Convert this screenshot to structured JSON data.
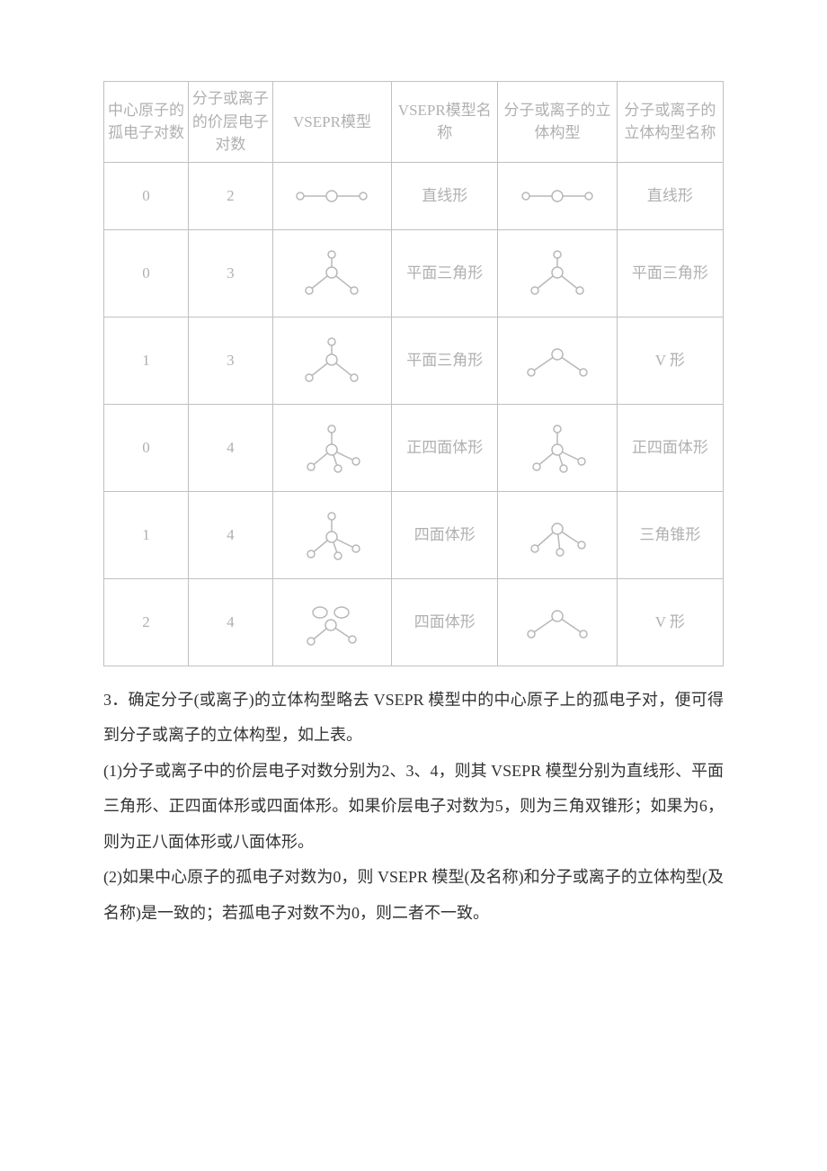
{
  "table": {
    "columns": [
      "中心原子的孤电子对数",
      "分子或离子的价层电子对数",
      "VSEPR模型",
      "VSEPR模型名称",
      "分子或离子的立体构型",
      "分子或离子的立体构型名称"
    ],
    "rows": [
      {
        "lonePairs": "0",
        "valencePairs": "2",
        "vseprName": "直线形",
        "geomName": "直线形",
        "vseprIcon": "linear",
        "geomIcon": "linear",
        "height": "short"
      },
      {
        "lonePairs": "0",
        "valencePairs": "3",
        "vseprName": "平面三角形",
        "geomName": "平面三角形",
        "vseprIcon": "trigonal",
        "geomIcon": "trigonal",
        "height": "tall"
      },
      {
        "lonePairs": "1",
        "valencePairs": "3",
        "vseprName": "平面三角形",
        "geomName": "V 形",
        "vseprIcon": "trigonal",
        "geomIcon": "bent",
        "height": "tall"
      },
      {
        "lonePairs": "0",
        "valencePairs": "4",
        "vseprName": "正四面体形",
        "geomName": "正四面体形",
        "vseprIcon": "tetra",
        "geomIcon": "tetra",
        "height": "tall"
      },
      {
        "lonePairs": "1",
        "valencePairs": "4",
        "vseprName": "四面体形",
        "geomName": "三角锥形",
        "vseprIcon": "tetra",
        "geomIcon": "pyramid",
        "height": "tall"
      },
      {
        "lonePairs": "2",
        "valencePairs": "4",
        "vseprName": "四面体形",
        "geomName": "V 形",
        "vseprIcon": "tetra-lp",
        "geomIcon": "bent",
        "height": "tall"
      }
    ],
    "style": {
      "border_color": "#c0c0c0",
      "text_color": "#b0b0b0",
      "font_size": 17,
      "icon_stroke": "#b8b8b8",
      "icon_fill": "#ffffff"
    }
  },
  "paragraphs": {
    "p3": "3．确定分子(或离子)的立体构型略去 VSEPR 模型中的中心原子上的孤电子对，便可得到分子或离子的立体构型，如上表。",
    "p1": "(1)分子或离子中的价层电子对数分别为2、3、4，则其 VSEPR 模型分别为直线形、平面三角形、正四面体形或四面体形。如果价层电子对数为5，则为三角双锥形；如果为6，则为正八面体形或八面体形。",
    "p2": "(2)如果中心原子的孤电子对数为0，则 VSEPR 模型(及名称)和分子或离子的立体构型(及名称)是一致的；若孤电子对数不为0，则二者不一致。"
  },
  "body_style": {
    "font_size": 18,
    "line_height": 2.2,
    "text_color": "#333333",
    "background": "#ffffff"
  }
}
